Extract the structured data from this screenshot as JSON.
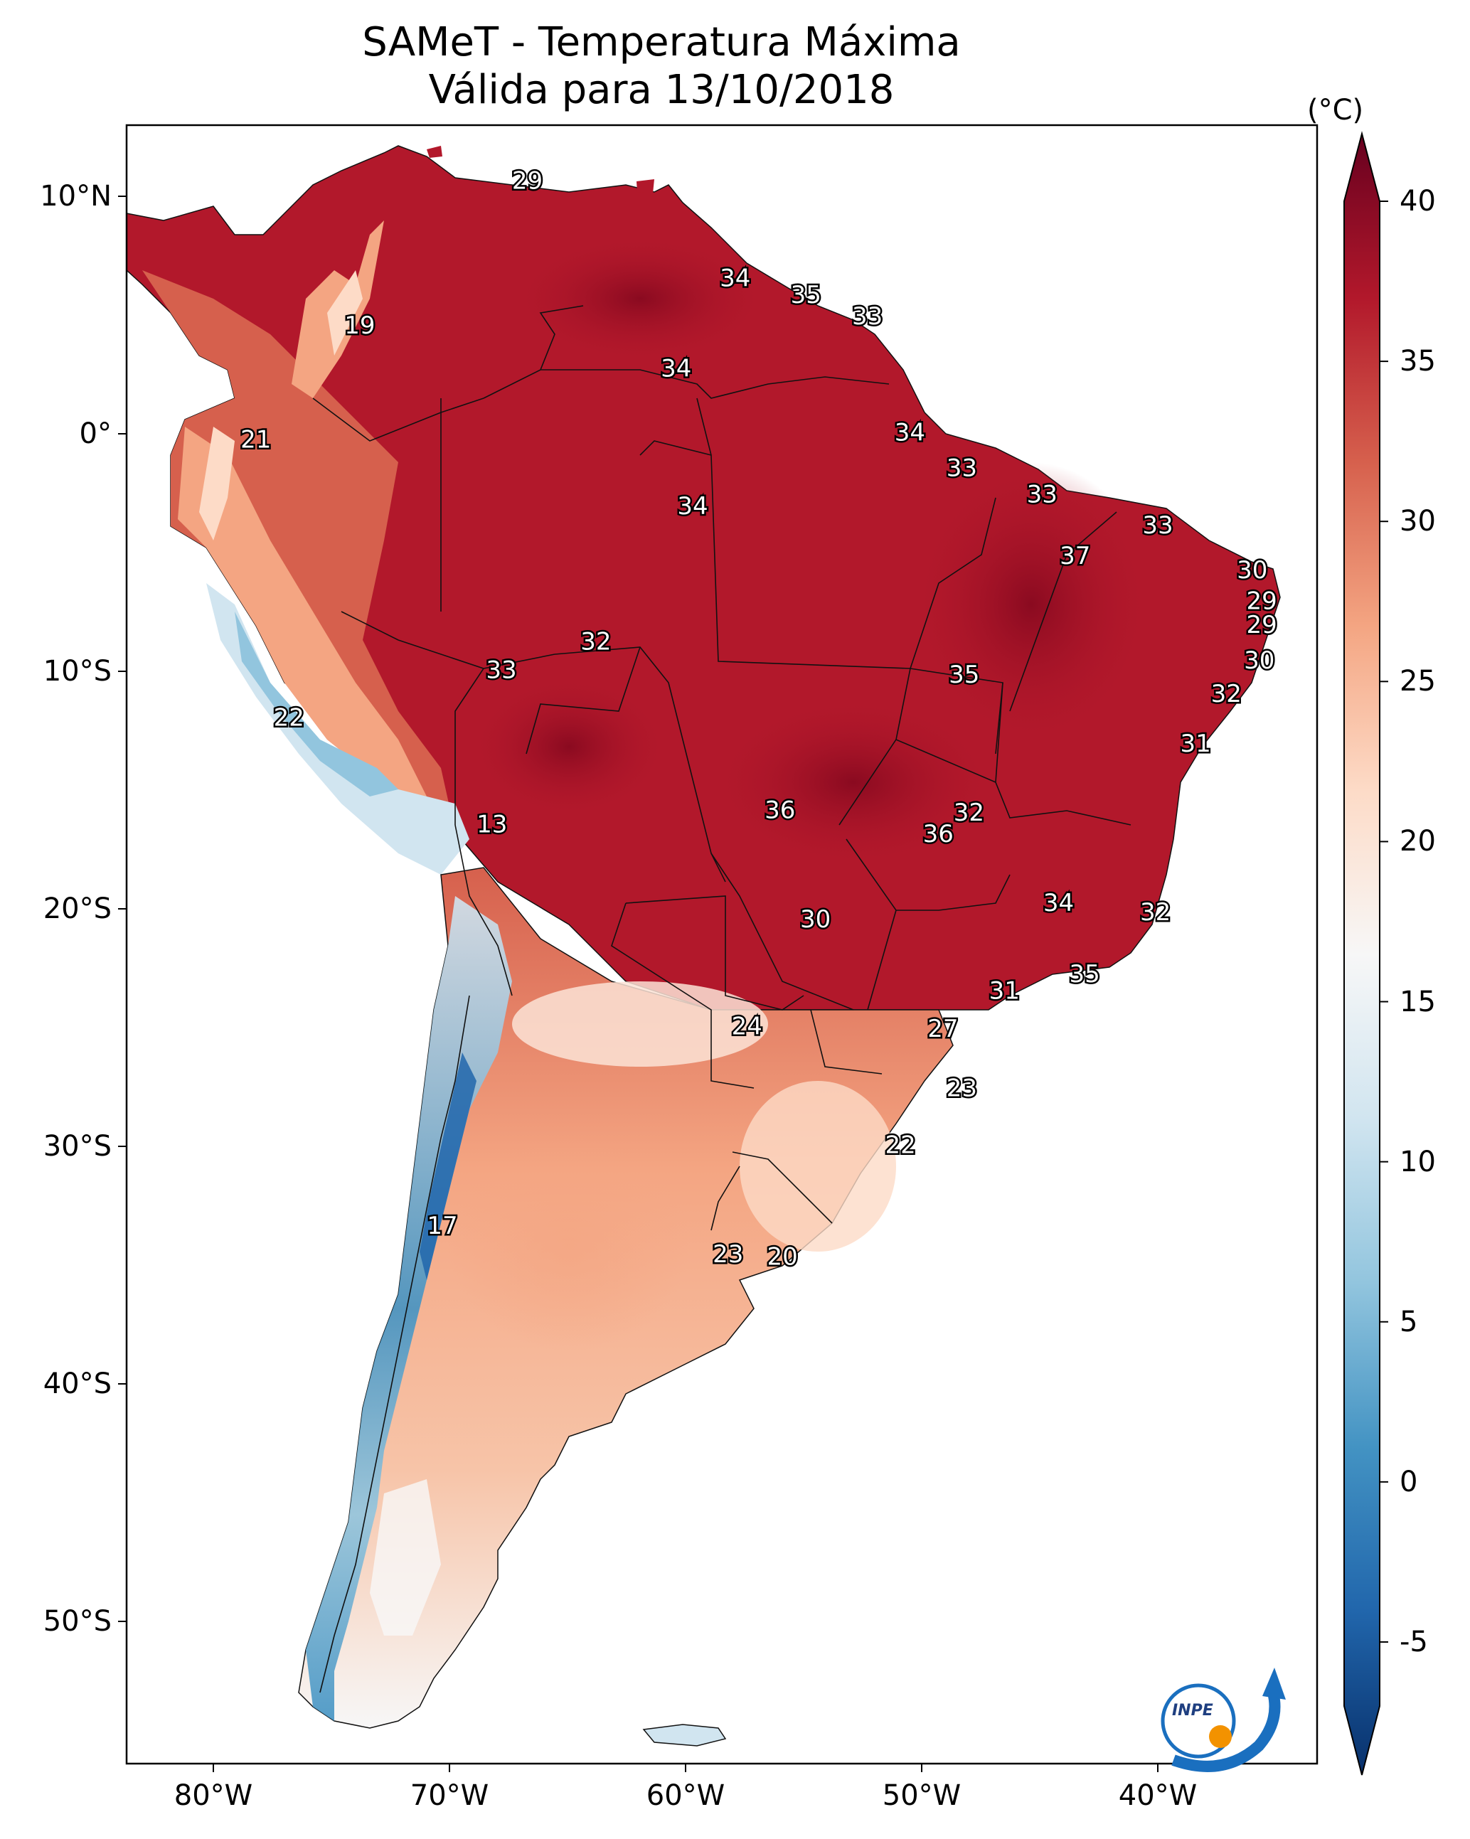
{
  "title": {
    "line1": "SAMeT - Temperatura Máxima",
    "line2": "Válida para 13/10/2018"
  },
  "colorbar": {
    "unit": "(°C)",
    "ticks": [
      40,
      35,
      30,
      25,
      20,
      15,
      10,
      5,
      0,
      -5
    ],
    "min": -7,
    "max": 40,
    "extend": "both",
    "colormap": "RdBu_r",
    "colors": [
      "#08306b",
      "#2166ac",
      "#4393c3",
      "#92c5de",
      "#d1e5f0",
      "#f7f7f7",
      "#fddbc7",
      "#f4a582",
      "#d6604d",
      "#b2182b",
      "#67001f"
    ]
  },
  "axes": {
    "lat_labels": [
      "10°N",
      "0°",
      "10°S",
      "20°S",
      "30°S",
      "40°S",
      "50°S"
    ],
    "lon_labels": [
      "80°W",
      "70°W",
      "60°W",
      "50°W",
      "40°W"
    ]
  },
  "map_labels": [
    {
      "text": "29",
      "lon": -66.7,
      "lat": 10.6
    },
    {
      "text": "34",
      "lon": -57.9,
      "lat": 6.5
    },
    {
      "text": "35",
      "lon": -54.9,
      "lat": 5.8
    },
    {
      "text": "33",
      "lon": -52.3,
      "lat": 4.9
    },
    {
      "text": "19",
      "lon": -73.8,
      "lat": 4.5
    },
    {
      "text": "34",
      "lon": -60.4,
      "lat": 2.7
    },
    {
      "text": "21",
      "lon": -78.2,
      "lat": -0.3
    },
    {
      "text": "34",
      "lon": -50.5,
      "lat": 0.0
    },
    {
      "text": "33",
      "lon": -48.3,
      "lat": -1.5
    },
    {
      "text": "33",
      "lon": -44.9,
      "lat": -2.6
    },
    {
      "text": "34",
      "lon": -59.7,
      "lat": -3.1
    },
    {
      "text": "33",
      "lon": -40.0,
      "lat": -3.9
    },
    {
      "text": "37",
      "lon": -43.5,
      "lat": -5.2
    },
    {
      "text": "30",
      "lon": -36.0,
      "lat": -5.8
    },
    {
      "text": "29",
      "lon": -35.6,
      "lat": -7.1
    },
    {
      "text": "29",
      "lon": -35.6,
      "lat": -8.1
    },
    {
      "text": "32",
      "lon": -63.8,
      "lat": -8.8
    },
    {
      "text": "33",
      "lon": -67.8,
      "lat": -10.0
    },
    {
      "text": "35",
      "lon": -48.2,
      "lat": -10.2
    },
    {
      "text": "30",
      "lon": -35.7,
      "lat": -9.6
    },
    {
      "text": "32",
      "lon": -37.1,
      "lat": -11.0
    },
    {
      "text": "22",
      "lon": -76.8,
      "lat": -12.0
    },
    {
      "text": "31",
      "lon": -38.4,
      "lat": -13.1
    },
    {
      "text": "36",
      "lon": -56.0,
      "lat": -15.9
    },
    {
      "text": "32",
      "lon": -48.0,
      "lat": -16.0
    },
    {
      "text": "36",
      "lon": -49.3,
      "lat": -16.9
    },
    {
      "text": "13",
      "lon": -68.2,
      "lat": -16.5
    },
    {
      "text": "34",
      "lon": -44.2,
      "lat": -19.8
    },
    {
      "text": "32",
      "lon": -40.1,
      "lat": -20.2
    },
    {
      "text": "30",
      "lon": -54.5,
      "lat": -20.5
    },
    {
      "text": "35",
      "lon": -43.1,
      "lat": -22.8
    },
    {
      "text": "31",
      "lon": -46.5,
      "lat": -23.5
    },
    {
      "text": "24",
      "lon": -57.4,
      "lat": -25.0
    },
    {
      "text": "27",
      "lon": -49.1,
      "lat": -25.1
    },
    {
      "text": "23",
      "lon": -48.3,
      "lat": -27.6
    },
    {
      "text": "22",
      "lon": -50.9,
      "lat": -30.0
    },
    {
      "text": "17",
      "lon": -70.3,
      "lat": -33.4
    },
    {
      "text": "23",
      "lon": -58.2,
      "lat": -34.6
    },
    {
      "text": "20",
      "lon": -55.9,
      "lat": -34.7
    }
  ],
  "logo": {
    "text": "INPE"
  }
}
